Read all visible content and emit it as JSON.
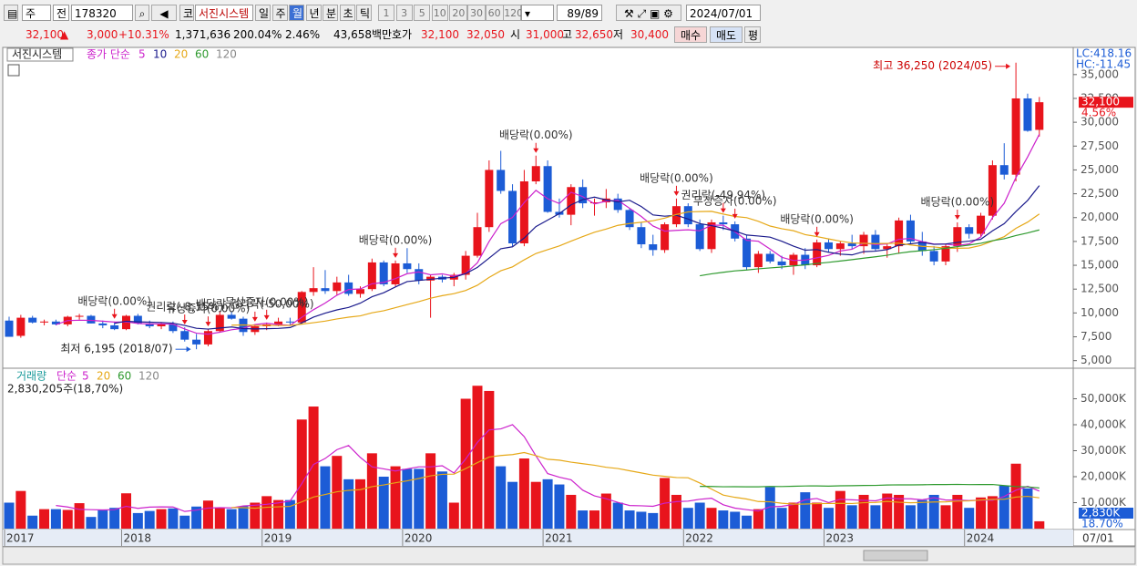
{
  "toolbar": {
    "market": "주",
    "prev": "전",
    "code": "178320",
    "type": "코",
    "name": "서진시스템",
    "periods": [
      "일",
      "주",
      "월",
      "년",
      "분",
      "초",
      "틱"
    ],
    "active_period": "월",
    "intervals": [
      1,
      3,
      5,
      10,
      20,
      30,
      60,
      120
    ],
    "count": "89/89",
    "date": "2024/07/01"
  },
  "quote": {
    "price": "32,100",
    "arrow": "▲",
    "change": "3,000",
    "rate": "+10.31%",
    "volume": "1,371,636",
    "vol_ratio": "200.04%",
    "turnover": "2.46%",
    "amount": "43,658백만",
    "ask_label": "호가",
    "ask": "32,100",
    "bid": "32,050",
    "open_label": "시",
    "open": "31,000",
    "high_label": "고",
    "high": "32,650",
    "low_label": "저",
    "low": "30,400",
    "buy": "매수",
    "sell": "매도",
    "avg": "평"
  },
  "chart_data": [
    {
      "type": "candlestick",
      "title": "서진시스템",
      "ma_label": "종가 단순",
      "ma_periods": [
        5,
        10,
        20,
        60,
        120
      ],
      "ma_colors": [
        "#cc22cc",
        "#1a1a8c",
        "#e6a817",
        "#2e9a2e",
        "#888888"
      ],
      "up_color": "#e8141c",
      "down_color": "#1c5cd6",
      "grid": false,
      "lc": "LC:418.16",
      "hc": "HC:-11.45",
      "last_tag": "32,100",
      "last_pct": "4.56%",
      "x_end_label": "07/01",
      "ylim": [
        4300,
        37850
      ],
      "yticks": [
        {
          "value": 5000,
          "label": "5,000"
        },
        {
          "value": 7500,
          "label": "7,500"
        },
        {
          "value": 10000,
          "label": "10,000"
        },
        {
          "value": 12500,
          "label": "12,500"
        },
        {
          "value": 15000,
          "label": "15,000"
        },
        {
          "value": 17500,
          "label": "17,500"
        },
        {
          "value": 20000,
          "label": "20,000"
        },
        {
          "value": 22500,
          "label": "22,500"
        },
        {
          "value": 25000,
          "label": "25,000"
        },
        {
          "value": 27500,
          "label": "27,500"
        },
        {
          "value": 30000,
          "label": "30,000"
        },
        {
          "value": 32500,
          "label": "32,500"
        },
        {
          "value": 35000,
          "label": "35,000"
        }
      ],
      "categories": [
        "2017",
        null,
        null,
        null,
        null,
        null,
        null,
        null,
        null,
        null,
        "2018",
        null,
        null,
        null,
        null,
        null,
        null,
        null,
        null,
        null,
        null,
        null,
        "2019",
        null,
        null,
        null,
        null,
        null,
        null,
        null,
        null,
        null,
        null,
        null,
        "2020",
        null,
        null,
        null,
        null,
        null,
        null,
        null,
        null,
        null,
        null,
        null,
        "2021",
        null,
        null,
        null,
        null,
        null,
        null,
        null,
        null,
        null,
        null,
        null,
        "2022",
        null,
        null,
        null,
        null,
        null,
        null,
        null,
        null,
        null,
        null,
        null,
        "2023",
        null,
        null,
        null,
        null,
        null,
        null,
        null,
        null,
        null,
        null,
        null,
        "2024",
        null,
        null,
        null,
        null,
        null,
        null
      ],
      "open": [
        9200,
        7600,
        9500,
        9000,
        9100,
        8800,
        9600,
        9700,
        8900,
        8700,
        8300,
        9700,
        8900,
        8600,
        8800,
        8100,
        7200,
        6700,
        8100,
        9800,
        9400,
        8000,
        8600,
        8800,
        9100,
        9000,
        12200,
        12600,
        12300,
        13200,
        12000,
        12500,
        15300,
        13000,
        15200,
        14600,
        13400,
        13800,
        13500,
        14000,
        16000,
        19000,
        25000,
        22800,
        17300,
        23800,
        25400,
        20600,
        20300,
        23200,
        21500,
        21600,
        22000,
        20800,
        19000,
        17200,
        16600,
        19300,
        21200,
        19300,
        16700,
        19500,
        19300,
        17800,
        14800,
        16200,
        15400,
        15000,
        16100,
        15000,
        17400,
        16700,
        17300,
        17000,
        18200,
        16700,
        17000,
        19700,
        17500,
        16500,
        15400,
        17000,
        19000,
        18300,
        20200,
        25500,
        24500,
        32500,
        29200
      ],
      "high": [
        9600,
        9800,
        9700,
        9300,
        9300,
        9700,
        9900,
        9800,
        9200,
        9100,
        9800,
        9900,
        9200,
        9000,
        9100,
        8500,
        7800,
        8300,
        10200,
        10100,
        9600,
        8800,
        9000,
        9500,
        9500,
        12300,
        14800,
        14500,
        13800,
        14000,
        12800,
        15700,
        15500,
        15500,
        16800,
        15200,
        14000,
        14000,
        14200,
        16500,
        20500,
        26000,
        27000,
        23500,
        25000,
        26500,
        26000,
        22000,
        23500,
        24000,
        22000,
        23000,
        22500,
        21000,
        19500,
        18200,
        19500,
        22000,
        21500,
        19800,
        19800,
        20200,
        19600,
        18200,
        16500,
        16500,
        16000,
        16300,
        16800,
        17700,
        17800,
        17500,
        18200,
        18500,
        18700,
        17200,
        20000,
        20300,
        18500,
        17000,
        17200,
        19500,
        19300,
        20500,
        26000,
        27800,
        36250,
        33000,
        32650
      ],
      "low": [
        7500,
        7400,
        8900,
        8700,
        8700,
        8600,
        9300,
        8900,
        8400,
        8200,
        8200,
        8800,
        8400,
        8300,
        7900,
        7000,
        6195,
        6500,
        8000,
        9300,
        7600,
        7700,
        8200,
        8600,
        8700,
        8800,
        11800,
        12000,
        11900,
        11800,
        11600,
        12300,
        12800,
        12800,
        14200,
        13000,
        9500,
        13200,
        12800,
        13500,
        15800,
        18500,
        22500,
        17000,
        17000,
        23500,
        20500,
        20000,
        19200,
        21000,
        20200,
        21000,
        20500,
        18700,
        16800,
        16000,
        16300,
        19000,
        19000,
        16500,
        16300,
        18700,
        17500,
        14500,
        14200,
        15200,
        14600,
        14000,
        14600,
        14800,
        16400,
        16000,
        16700,
        16200,
        16500,
        15800,
        16200,
        17300,
        16000,
        15000,
        15000,
        16400,
        17800,
        18000,
        19800,
        24000,
        23800,
        29000,
        28500
      ],
      "close": [
        7500,
        9500,
        9000,
        9100,
        8800,
        9600,
        9700,
        8900,
        8700,
        8300,
        9700,
        8900,
        8600,
        8800,
        8100,
        7200,
        6700,
        8100,
        9800,
        9400,
        8000,
        8600,
        8800,
        9100,
        9000,
        12200,
        12600,
        12300,
        13200,
        12000,
        12500,
        15300,
        13000,
        15200,
        14600,
        13400,
        13800,
        13500,
        14000,
        16000,
        19000,
        25000,
        22800,
        17300,
        23800,
        25400,
        20600,
        20300,
        23200,
        21500,
        21600,
        22000,
        20800,
        19000,
        17200,
        16600,
        19300,
        21200,
        19300,
        16700,
        19500,
        19300,
        17800,
        14800,
        16200,
        15400,
        15000,
        16100,
        15000,
        17400,
        16700,
        17300,
        17000,
        18200,
        16700,
        17000,
        19700,
        17500,
        16500,
        15400,
        17000,
        19000,
        18300,
        20200,
        25500,
        24500,
        32500,
        29100,
        32100
      ],
      "events": [
        {
          "bar": 9,
          "text": "배당락(0.00%)"
        },
        {
          "bar": 15,
          "text": "권리락(-8,15%)"
        },
        {
          "bar": 17,
          "text": "유상증자(0.00%)"
        },
        {
          "bar": 21,
          "text": "배당락,권리락(-50,00%)"
        },
        {
          "bar": 22,
          "text": "무상증자(0.00%)"
        },
        {
          "bar": 33,
          "text": "배당락(0.00%)"
        },
        {
          "bar": 45,
          "text": "배당락(0.00%)"
        },
        {
          "bar": 57,
          "text": "배당락(0.00%)"
        },
        {
          "bar": 61,
          "text": "권리락(-49.94%)"
        },
        {
          "bar": 62,
          "text": "무상증자(0.00%)"
        },
        {
          "bar": 69,
          "text": "배당락(0.00%)"
        },
        {
          "bar": 81,
          "text": "배당락(0.00%)"
        }
      ],
      "extremes": [
        {
          "bar": 86,
          "kind": "high",
          "text": "최고 36,250 (2024/05)",
          "color": "#e8141c"
        },
        {
          "bar": 16,
          "kind": "low",
          "text": "최저 6,195 (2018/07)",
          "color": "#1c5cd6"
        }
      ]
    },
    {
      "type": "bar",
      "title": "거래량",
      "ma_label": "단순",
      "ma_periods": [
        5,
        20,
        60,
        120
      ],
      "ma_colors": [
        "#cc22cc",
        "#e6a817",
        "#2e9a2e",
        "#888888"
      ],
      "subtitle": "2,830,205주(18,70%)",
      "last_tag": "2,830K",
      "last_pct": "18.70%",
      "ylim": [
        0,
        61400
      ],
      "yticks": [
        {
          "value": 10000,
          "label": "10,000K"
        },
        {
          "value": 20000,
          "label": "20,000K"
        },
        {
          "value": 30000,
          "label": "30,000K"
        },
        {
          "value": 40000,
          "label": "40,000K"
        },
        {
          "value": 50000,
          "label": "50,000K"
        }
      ],
      "values": [
        10000,
        14500,
        5000,
        7500,
        7500,
        7200,
        9800,
        4500,
        7000,
        8000,
        13600,
        6000,
        6800,
        7500,
        7800,
        5000,
        8500,
        10800,
        8200,
        7500,
        8600,
        10000,
        12500,
        11000,
        11000,
        42000,
        47000,
        24000,
        28000,
        19000,
        19000,
        29000,
        20000,
        24000,
        23000,
        23000,
        29000,
        22000,
        10000,
        50000,
        55000,
        53000,
        24000,
        18000,
        27000,
        18000,
        19000,
        17000,
        13000,
        7000,
        7000,
        13500,
        10000,
        7000,
        6500,
        6000,
        19500,
        13000,
        8000,
        10000,
        8000,
        7000,
        6500,
        5000,
        7500,
        16000,
        8000,
        10000,
        14000,
        10000,
        8000,
        14500,
        9000,
        13000,
        9000,
        13500,
        13000,
        9000,
        11000,
        13000,
        9000,
        13000,
        8000,
        12000,
        12500,
        16500,
        25000,
        15500,
        2830
      ]
    }
  ]
}
